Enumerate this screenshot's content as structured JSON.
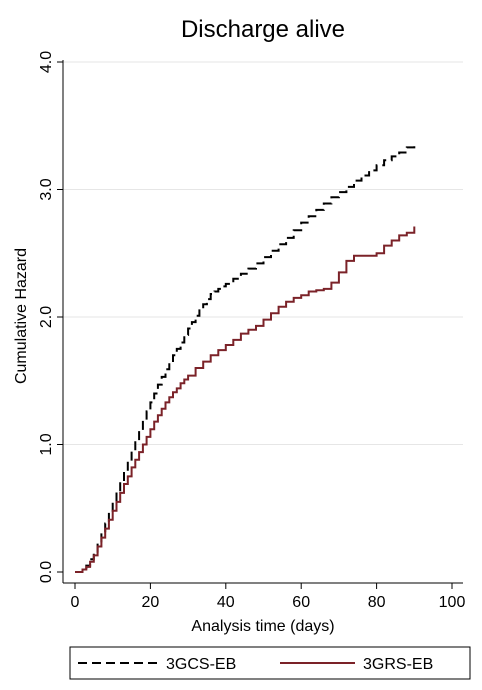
{
  "chart_data": {
    "type": "line",
    "step": true,
    "title": "Discharge alive",
    "xlabel": "Analysis time (days)",
    "ylabel": "Cumulative Hazard",
    "xlim": [
      0,
      100
    ],
    "ylim": [
      0,
      4
    ],
    "xticks": [
      "0",
      "20",
      "40",
      "60",
      "80",
      "100"
    ],
    "yticks": [
      "0.0",
      "1.0",
      "2.0",
      "3.0",
      "4.0"
    ],
    "grid": true,
    "legend_position": "bottom",
    "series": [
      {
        "name": "3GCS-EB",
        "color": "#000000",
        "dash": "dashed",
        "x": [
          0,
          2,
          3,
          4,
          5,
          6,
          7,
          8,
          9,
          10,
          11,
          12,
          13,
          14,
          15,
          16,
          17,
          18,
          19,
          20,
          21,
          22,
          23,
          24,
          25,
          26,
          27,
          28,
          29,
          30,
          31,
          32,
          33,
          34,
          35,
          36,
          37,
          38,
          39,
          40,
          42,
          44,
          46,
          48,
          50,
          52,
          54,
          56,
          58,
          60,
          62,
          64,
          66,
          68,
          70,
          72,
          74,
          76,
          78,
          80,
          82,
          84,
          86,
          88,
          90
        ],
        "y": [
          0,
          0.02,
          0.05,
          0.1,
          0.16,
          0.24,
          0.31,
          0.38,
          0.47,
          0.55,
          0.63,
          0.71,
          0.79,
          0.87,
          0.95,
          1.03,
          1.11,
          1.19,
          1.26,
          1.33,
          1.4,
          1.47,
          1.53,
          1.59,
          1.64,
          1.7,
          1.75,
          1.8,
          1.86,
          1.91,
          1.96,
          2.01,
          2.06,
          2.1,
          2.14,
          2.18,
          2.2,
          2.22,
          2.24,
          2.26,
          2.3,
          2.34,
          2.38,
          2.42,
          2.47,
          2.52,
          2.57,
          2.62,
          2.68,
          2.74,
          2.79,
          2.84,
          2.89,
          2.94,
          2.98,
          3.02,
          3.07,
          3.11,
          3.15,
          3.19,
          3.23,
          3.26,
          3.29,
          3.33,
          3.37
        ]
      },
      {
        "name": "3GRS-EB",
        "color": "#7b2228",
        "dash": "solid",
        "x": [
          0,
          2,
          3,
          4,
          5,
          6,
          7,
          8,
          9,
          10,
          11,
          12,
          13,
          14,
          15,
          16,
          17,
          18,
          19,
          20,
          21,
          22,
          23,
          24,
          25,
          26,
          27,
          28,
          29,
          30,
          32,
          34,
          36,
          38,
          40,
          42,
          44,
          46,
          48,
          50,
          52,
          54,
          56,
          58,
          60,
          62,
          64,
          66,
          68,
          70,
          72,
          74,
          76,
          78,
          80,
          82,
          84,
          86,
          88,
          90
        ],
        "y": [
          0,
          0.02,
          0.04,
          0.08,
          0.13,
          0.2,
          0.27,
          0.34,
          0.41,
          0.48,
          0.55,
          0.62,
          0.69,
          0.75,
          0.82,
          0.88,
          0.94,
          1.0,
          1.06,
          1.12,
          1.18,
          1.23,
          1.28,
          1.33,
          1.37,
          1.41,
          1.44,
          1.48,
          1.51,
          1.54,
          1.6,
          1.65,
          1.7,
          1.74,
          1.78,
          1.82,
          1.87,
          1.9,
          1.93,
          1.98,
          2.03,
          2.08,
          2.12,
          2.15,
          2.17,
          2.2,
          2.21,
          2.22,
          2.27,
          2.35,
          2.44,
          2.48,
          2.48,
          2.48,
          2.5,
          2.56,
          2.6,
          2.64,
          2.66,
          2.71
        ]
      }
    ]
  }
}
